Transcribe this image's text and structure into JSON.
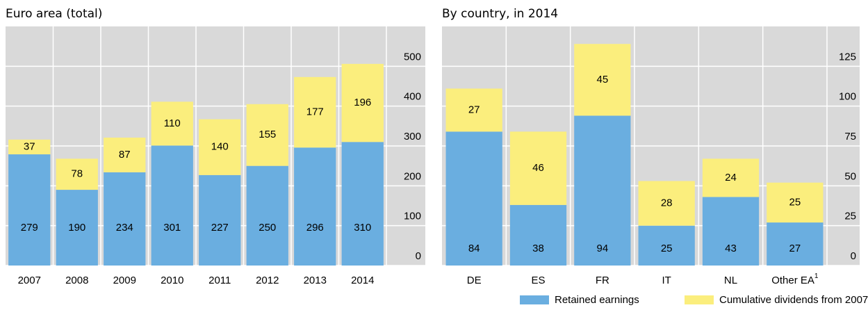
{
  "chart_data": [
    {
      "type": "bar",
      "stacked": true,
      "title": "Euro area (total)",
      "categories": [
        "2007",
        "2008",
        "2009",
        "2010",
        "2011",
        "2012",
        "2013",
        "2014"
      ],
      "series": [
        {
          "name": "Retained earnings",
          "color": "#6aaee0",
          "values": [
            279,
            190,
            234,
            301,
            227,
            250,
            296,
            310
          ]
        },
        {
          "name": "Cumulative dividends from 2007",
          "color": "#fbee7d",
          "values": [
            37,
            78,
            87,
            110,
            140,
            155,
            177,
            196
          ]
        }
      ],
      "ylim": [
        0,
        600
      ],
      "yticks": [
        0,
        100,
        200,
        300,
        400,
        500
      ],
      "grid": true,
      "legend": "bottom"
    },
    {
      "type": "bar",
      "stacked": true,
      "title": "By country, in 2014",
      "categories": [
        "DE",
        "ES",
        "FR",
        "IT",
        "NL",
        "Other EA"
      ],
      "category_superscripts": [
        null,
        null,
        null,
        null,
        null,
        "1"
      ],
      "series": [
        {
          "name": "Retained earnings",
          "color": "#6aaee0",
          "values": [
            84,
            38,
            94,
            25,
            43,
            27
          ]
        },
        {
          "name": "Cumulative dividends from 2007",
          "color": "#fbee7d",
          "values": [
            27,
            46,
            45,
            28,
            24,
            25
          ]
        }
      ],
      "ylim": [
        0,
        150
      ],
      "yticks": [
        0,
        25,
        50,
        75,
        100,
        125
      ],
      "grid": true
    }
  ]
}
